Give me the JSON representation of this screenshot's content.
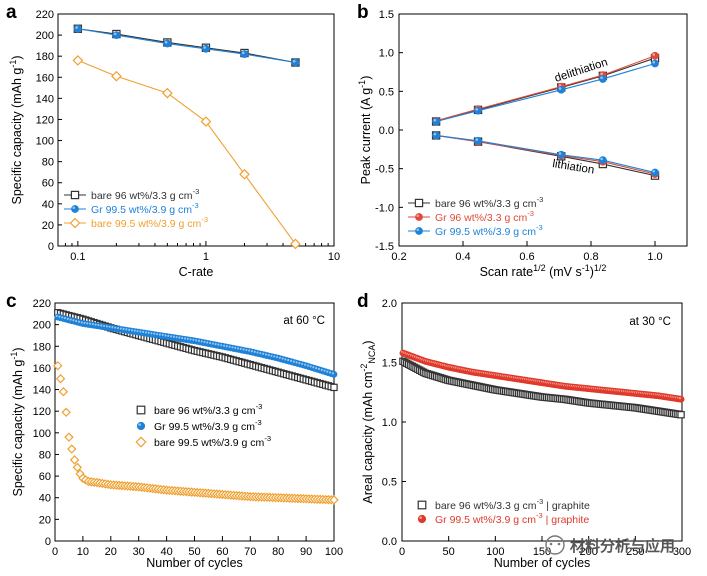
{
  "watermark": "材料分析与应用",
  "chart_data": [
    {
      "panel": "a",
      "type": "line",
      "xscale": "log",
      "xlabel": "C-rate",
      "ylabel": "Specific capacity (mAh g⁻¹)",
      "xlim": [
        0.07,
        10
      ],
      "ylim": [
        0,
        220
      ],
      "xticks": [
        0.1,
        1,
        10
      ],
      "xtick_labels": [
        "0.1",
        "1",
        "10"
      ],
      "yticks": [
        0,
        20,
        40,
        60,
        80,
        100,
        120,
        140,
        160,
        180,
        200,
        220
      ],
      "legend_position": "lower-left",
      "series": [
        {
          "name": "bare 96 wt%/3.3 g cm⁻³",
          "color": "#333333",
          "marker": "square-open",
          "x": [
            0.1,
            0.2,
            0.5,
            1,
            2,
            5
          ],
          "y": [
            206,
            201,
            193,
            188,
            183,
            174
          ]
        },
        {
          "name": "Gr 99.5 wt%/3.9 g cm⁻³",
          "color": "#1f82d8",
          "marker": "circle-filled",
          "x": [
            0.1,
            0.2,
            0.5,
            1,
            2,
            5
          ],
          "y": [
            206,
            200,
            192,
            187,
            182,
            174
          ]
        },
        {
          "name": "bare 99.5 wt%/3.9 g cm⁻³",
          "color": "#f0a030",
          "marker": "diamond-open",
          "x": [
            0.1,
            0.2,
            0.5,
            1,
            2,
            5
          ],
          "y": [
            176,
            161,
            145,
            118,
            68,
            2
          ]
        }
      ]
    },
    {
      "panel": "b",
      "type": "line",
      "xlabel": "Scan rate¹ᐟ² (mV s⁻¹)¹ᐟ²",
      "ylabel": "Peak current (A g⁻¹)",
      "xlim": [
        0.2,
        1.1
      ],
      "ylim": [
        -1.5,
        1.5
      ],
      "xticks": [
        0.2,
        0.4,
        0.6,
        0.8,
        1.0
      ],
      "xtick_labels": [
        "0.2",
        "0.4",
        "0.6",
        "0.8",
        "1.0"
      ],
      "yticks": [
        -1.5,
        -1.0,
        -0.5,
        0.0,
        0.5,
        1.0,
        1.5
      ],
      "ytick_labels": [
        "-1.5",
        "-1.0",
        "-0.5",
        "0.0",
        "0.5",
        "1.0",
        "1.5"
      ],
      "annotations": [
        "delithiation",
        "lithiation"
      ],
      "legend_position": "lower-left",
      "series": [
        {
          "name": "bare 96 wt%/3.3 g cm⁻³",
          "color": "#333333",
          "marker": "square-open",
          "x": [
            0.316,
            0.447,
            0.707,
            0.837,
            1.0
          ],
          "y": [
            0.11,
            0.26,
            0.55,
            0.7,
            0.93
          ]
        },
        {
          "name": "Gr 96 wt%/3.3 g cm⁻³",
          "color": "#e04a3a",
          "marker": "circle-filled",
          "x": [
            0.316,
            0.447,
            0.707,
            0.837,
            1.0
          ],
          "y": [
            0.12,
            0.27,
            0.56,
            0.71,
            0.96
          ]
        },
        {
          "name": "Gr 99.5 wt%/3.9 g cm⁻³",
          "color": "#1f82d8",
          "marker": "circle-filled",
          "x": [
            0.316,
            0.447,
            0.707,
            0.837,
            1.0
          ],
          "y": [
            0.11,
            0.25,
            0.52,
            0.66,
            0.86
          ]
        },
        {
          "name": "bare 96 wt%/3.3 g cm⁻³ (lithiation)",
          "legend": false,
          "color": "#333333",
          "marker": "square-open",
          "x": [
            0.316,
            0.447,
            0.707,
            0.837,
            1.0
          ],
          "y": [
            -0.07,
            -0.15,
            -0.34,
            -0.44,
            -0.59
          ]
        },
        {
          "name": "Gr 96 wt%/3.3 g cm⁻³ (lithiation)",
          "legend": false,
          "color": "#e04a3a",
          "marker": "circle-filled",
          "x": [
            0.316,
            0.447,
            0.707,
            0.837,
            1.0
          ],
          "y": [
            -0.07,
            -0.15,
            -0.33,
            -0.41,
            -0.57
          ]
        },
        {
          "name": "Gr 99.5 wt%/3.9 g cm⁻³ (lithiation)",
          "legend": false,
          "color": "#1f82d8",
          "marker": "circle-filled",
          "x": [
            0.316,
            0.447,
            0.707,
            0.837,
            1.0
          ],
          "y": [
            -0.07,
            -0.14,
            -0.32,
            -0.39,
            -0.55
          ]
        }
      ]
    },
    {
      "panel": "c",
      "type": "scatter",
      "xlabel": "Number of cycles",
      "ylabel": "Specific capacity (mAh g⁻¹)",
      "xlim": [
        0,
        100
      ],
      "ylim": [
        0,
        220
      ],
      "xticks": [
        0,
        10,
        20,
        30,
        40,
        50,
        60,
        70,
        80,
        90,
        100
      ],
      "yticks": [
        0,
        20,
        40,
        60,
        80,
        100,
        120,
        140,
        160,
        180,
        200,
        220
      ],
      "annotation": "at 60 °C",
      "legend_position": "center-right",
      "series": [
        {
          "name": "bare 96 wt%/3.3 g cm⁻³",
          "color": "#333333",
          "marker": "square-open",
          "x": [
            1,
            10,
            20,
            30,
            40,
            50,
            60,
            70,
            80,
            90,
            100
          ],
          "y": [
            211,
            205,
            197,
            190,
            183,
            176,
            170,
            163,
            156,
            149,
            142
          ]
        },
        {
          "name": "Gr 99.5 wt%/3.9 g cm⁻³",
          "color": "#1f82d8",
          "marker": "circle-filled",
          "x": [
            1,
            10,
            20,
            30,
            40,
            50,
            60,
            70,
            80,
            90,
            100
          ],
          "y": [
            207,
            201,
            197,
            193,
            189,
            185,
            180,
            175,
            169,
            162,
            154
          ]
        },
        {
          "name": "bare 99.5 wt%/3.9 g cm⁻³",
          "color": "#f0a030",
          "marker": "diamond-open",
          "x": [
            1,
            2,
            3,
            4,
            5,
            6,
            7,
            8,
            9,
            10,
            12,
            15,
            20,
            30,
            40,
            50,
            60,
            70,
            80,
            90,
            100
          ],
          "y": [
            162,
            150,
            138,
            119,
            96,
            85,
            75,
            68,
            62,
            58,
            55,
            54,
            52,
            50,
            47,
            45,
            43,
            41,
            40,
            39,
            38
          ]
        }
      ]
    },
    {
      "panel": "d",
      "type": "scatter",
      "xlabel": "Number of cycles",
      "ylabel": "Areal capacity (mAh cm⁻² NCA)",
      "xlim": [
        0,
        300
      ],
      "ylim": [
        0,
        2.0
      ],
      "xticks": [
        0,
        50,
        100,
        150,
        200,
        250,
        300
      ],
      "xtick_labels": [
        "0",
        "50",
        "100",
        "150",
        "200",
        "250",
        "300"
      ],
      "yticks": [
        0,
        0.5,
        1.0,
        1.5,
        2.0
      ],
      "ytick_labels": [
        "0.0",
        "0.5",
        "1.0",
        "1.5",
        "2.0"
      ],
      "annotation": "at 30 °C",
      "legend_position": "lower-left",
      "series": [
        {
          "name": "bare 96 wt%/3.3 g cm⁻³ | graphite",
          "color": "#333333",
          "marker": "square-open",
          "x": [
            1,
            25,
            50,
            75,
            100,
            125,
            150,
            175,
            200,
            225,
            250,
            275,
            300
          ],
          "y": [
            1.51,
            1.41,
            1.35,
            1.31,
            1.27,
            1.24,
            1.21,
            1.19,
            1.16,
            1.14,
            1.12,
            1.09,
            1.06
          ]
        },
        {
          "name": "Gr 99.5 wt%/3.9 g cm⁻³ | graphite",
          "color": "#e03a2a",
          "marker": "circle-filled",
          "x": [
            1,
            25,
            50,
            75,
            100,
            125,
            150,
            175,
            200,
            225,
            250,
            275,
            300
          ],
          "y": [
            1.58,
            1.51,
            1.46,
            1.42,
            1.39,
            1.36,
            1.33,
            1.3,
            1.28,
            1.26,
            1.24,
            1.22,
            1.19
          ]
        }
      ]
    }
  ]
}
